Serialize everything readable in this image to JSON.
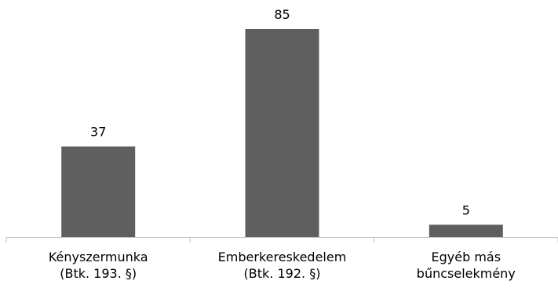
{
  "chart_data": {
    "type": "bar",
    "categories": [
      [
        "Kényszermunka",
        "(Btk. 193. §)"
      ],
      [
        "Emberkereskedelem",
        "(Btk. 192. §)"
      ],
      [
        "Egyéb más",
        "bűncselekmény"
      ]
    ],
    "values": [
      37,
      85,
      5
    ],
    "data_labels": [
      "37",
      "85",
      "5"
    ],
    "ylim": [
      0,
      85
    ],
    "grid": false,
    "bar_color": "#5f5f5f",
    "axis_color": "#bfbfbf"
  }
}
